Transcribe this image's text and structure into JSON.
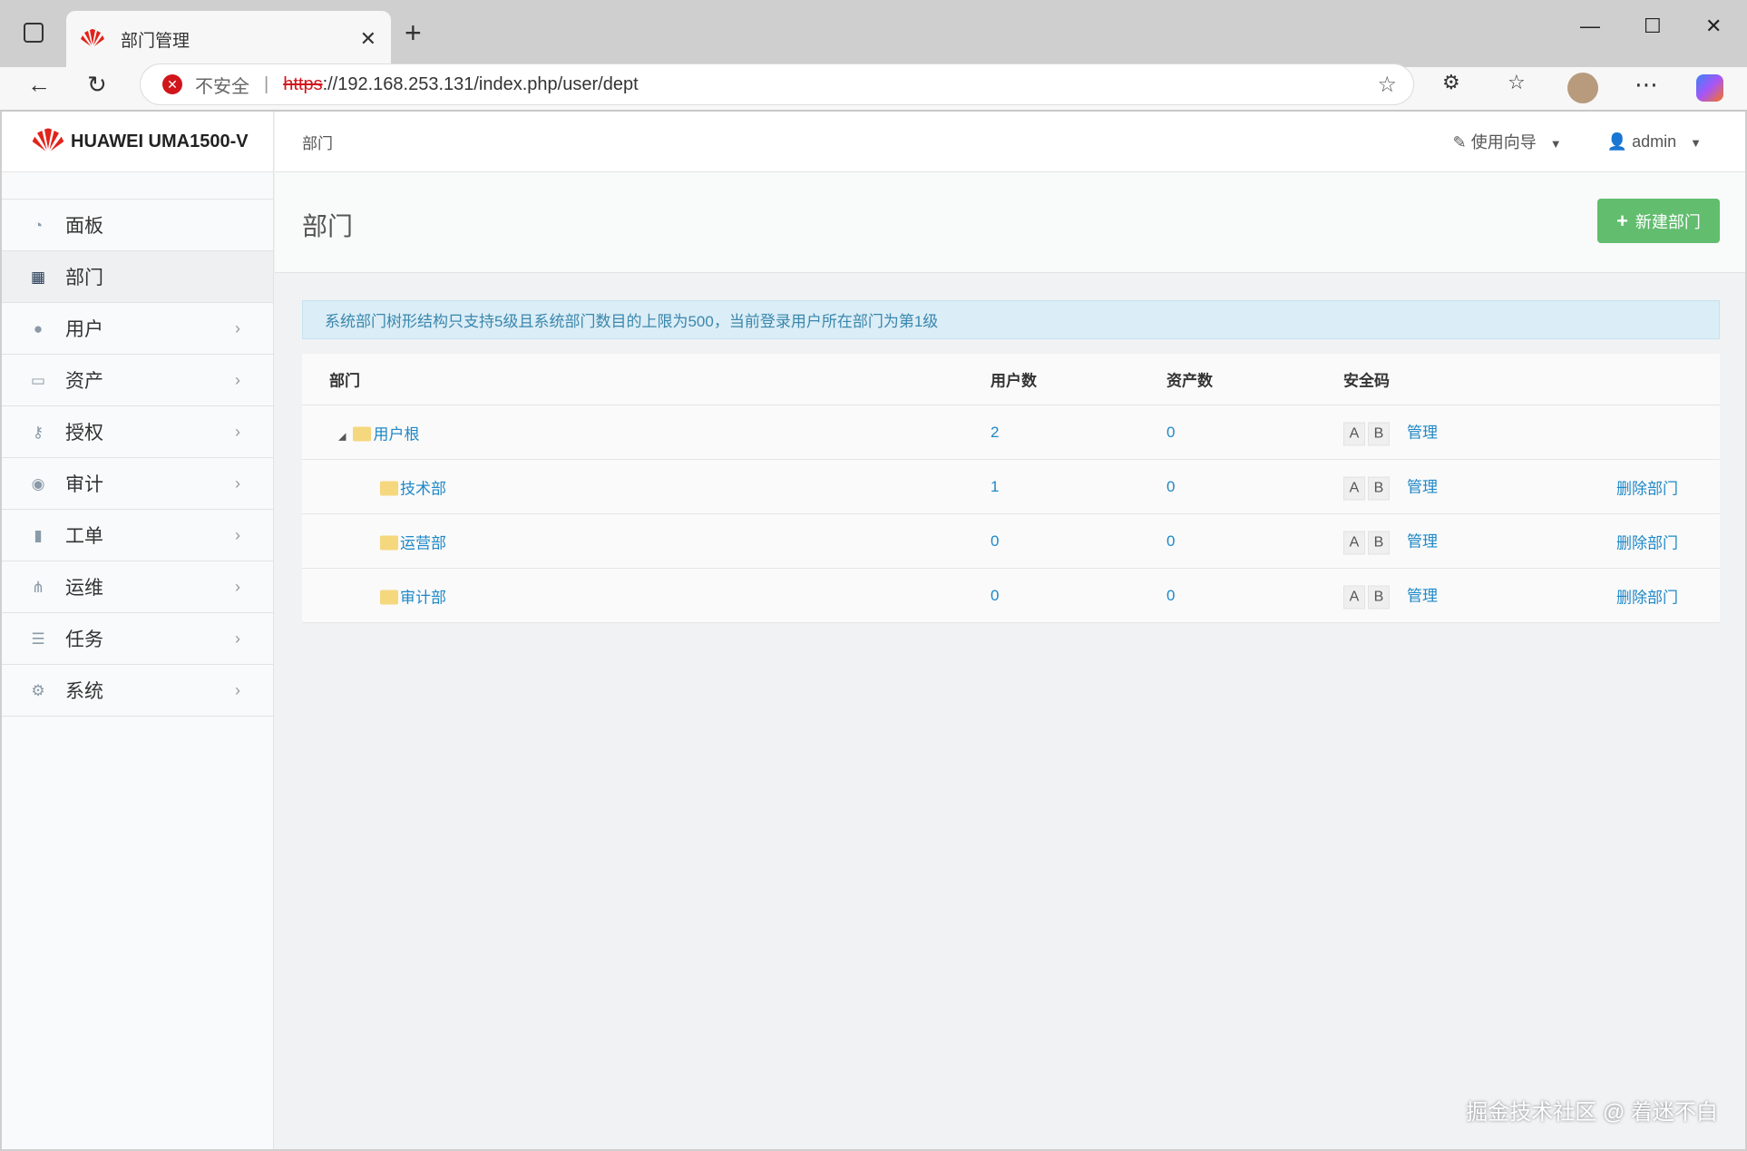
{
  "browser": {
    "tab_title": "部门管理",
    "url_scheme": "https",
    "url_rest": "://192.168.253.131/index.php/user/dept",
    "insecure_label": "不安全"
  },
  "app": {
    "logo_text": "HUAWEI UMA1500-V",
    "breadcrumb": "部门",
    "guide_label": "使用向导",
    "user_label": "admin",
    "page_title": "部门",
    "new_button": "新建部门",
    "alert": "系统部门树形结构只支持5级且系统部门数目的上限为500，当前登录用户所在部门为第1级"
  },
  "sidebar": {
    "items": [
      {
        "label": "面板",
        "icon": "dashboard-icon",
        "chevron": false
      },
      {
        "label": "部门",
        "icon": "grid-icon",
        "chevron": false,
        "active": true
      },
      {
        "label": "用户",
        "icon": "user-icon",
        "chevron": true
      },
      {
        "label": "资产",
        "icon": "monitor-icon",
        "chevron": true
      },
      {
        "label": "授权",
        "icon": "key-icon",
        "chevron": true
      },
      {
        "label": "审计",
        "icon": "eye-icon",
        "chevron": true
      },
      {
        "label": "工单",
        "icon": "file-icon",
        "chevron": true
      },
      {
        "label": "运维",
        "icon": "sitemap-icon",
        "chevron": true
      },
      {
        "label": "任务",
        "icon": "server-icon",
        "chevron": true
      },
      {
        "label": "系统",
        "icon": "gear-icon",
        "chevron": true
      }
    ]
  },
  "table": {
    "headers": [
      "部门",
      "用户数",
      "资产数",
      "安全码"
    ],
    "rows": [
      {
        "name": "用户根",
        "users": "2",
        "assets": "0",
        "a": "A",
        "b": "B",
        "manage": "管理",
        "delete": ""
      },
      {
        "name": "技术部",
        "users": "1",
        "assets": "0",
        "a": "A",
        "b": "B",
        "manage": "管理",
        "delete": "删除部门"
      },
      {
        "name": "运营部",
        "users": "0",
        "assets": "0",
        "a": "A",
        "b": "B",
        "manage": "管理",
        "delete": "删除部门"
      },
      {
        "name": "审计部",
        "users": "0",
        "assets": "0",
        "a": "A",
        "b": "B",
        "manage": "管理",
        "delete": "删除部门"
      }
    ]
  },
  "watermark": "掘金技术社区 @ 着迷不白",
  "colors": {
    "accent": "#1e88c7",
    "success": "#62bd6f",
    "alert_bg": "#dbedf6"
  }
}
